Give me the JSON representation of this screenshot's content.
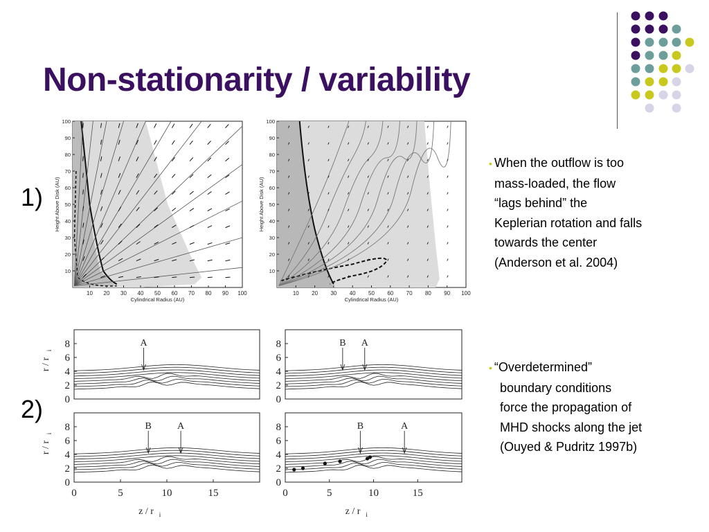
{
  "title": "Non-stationarity / variability",
  "row_labels": [
    "1)",
    "2)"
  ],
  "bullets": [
    {
      "marker": "•",
      "lines": [
        "When the outflow is too",
        "mass-loaded, the flow",
        "“lags behind” the",
        "Keplerian rotation and falls",
        "towards the center",
        "(Anderson et al. 2004)"
      ]
    },
    {
      "marker": "•",
      "lines": [
        "“Overdetermined”",
        "boundary conditions",
        "force the propagation of",
        "MHD shocks along the jet",
        "(Ouyed & Pudritz 1997b)"
      ]
    }
  ],
  "figure1": {
    "xlabel": "Cylindrical Radius (AU)",
    "ylabel": "Height Above Disk (AU)",
    "xticks": [
      "10",
      "20",
      "30",
      "40",
      "50",
      "60",
      "70",
      "80",
      "90",
      "100"
    ],
    "yticks": [
      "100",
      "90",
      "80",
      "70",
      "60",
      "50",
      "40",
      "30",
      "20",
      "10"
    ]
  },
  "figure2": {
    "ylabel": "r / r",
    "ylabel_sub": "i",
    "xlabel": "z / r",
    "xlabel_sub": "i",
    "yticks": [
      "8",
      "6",
      "4",
      "2",
      "0"
    ],
    "xticks": [
      "0",
      "5",
      "10",
      "15"
    ],
    "panels": [
      {
        "markers": [
          "A"
        ]
      },
      {
        "markers": [
          "B",
          "A"
        ]
      },
      {
        "markers": [
          "B",
          "A"
        ]
      },
      {
        "markers": [
          "B",
          "A"
        ]
      }
    ]
  },
  "colors": {
    "title": "#3b1060",
    "dot_purple": "#3b1060",
    "dot_teal": "#6e9e9b",
    "dot_yellow": "#c8c81e",
    "dot_lavender": "#d7d4e8"
  }
}
